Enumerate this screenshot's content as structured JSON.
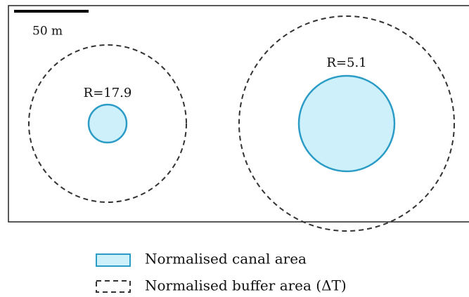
{
  "scale_bar": {
    "label": "50 m"
  },
  "nodes": [
    {
      "label": "R=17.9"
    },
    {
      "label": "R=5.1"
    }
  ],
  "legend": [
    {
      "label": "Normalised canal area"
    },
    {
      "label": "Normalised buffer area (ΔT)"
    }
  ]
}
